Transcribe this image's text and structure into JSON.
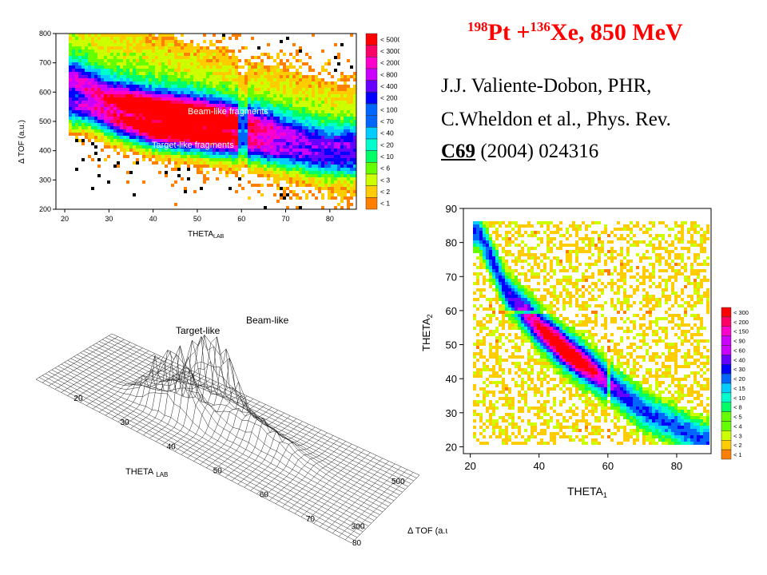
{
  "slide": {
    "title_mass1": "198",
    "title_elem1": "Pt +",
    "title_mass2": "136",
    "title_elem2": "Xe, 850 MeV",
    "citation_line1": "J.J. Valiente-Dobon, PHR,",
    "citation_line2": "C.Wheldon et al., Phys. Rev.",
    "citation_volume": "C69",
    "citation_rest": " (2004) 024316"
  },
  "colors": {
    "scale": [
      "#ff7f00",
      "#ffcc00",
      "#ccff00",
      "#66ff00",
      "#00ff66",
      "#00ffcc",
      "#00ccff",
      "#0066ff",
      "#0000ff",
      "#6600ff",
      "#cc00ff",
      "#ff00cc",
      "#ff0066",
      "#ff0000"
    ]
  },
  "chart_data": [
    {
      "type": "heatmap",
      "name": "top-left-tof-vs-theta",
      "xlabel": "THETA",
      "xlabel_sub": "LAB",
      "ylabel": "Δ TOF (a.u.)",
      "xlim": [
        18,
        86
      ],
      "ylim": [
        200,
        800
      ],
      "xticks": [
        "20",
        "30",
        "40",
        "50",
        "60",
        "70",
        "80"
      ],
      "yticks": [
        "200",
        "300",
        "400",
        "500",
        "600",
        "700",
        "800"
      ],
      "legend": [
        "< 5000",
        "< 3000",
        "< 2000",
        "< 800",
        "< 400",
        "< 200",
        "< 100",
        "< 70",
        "< 40",
        "< 20",
        "< 10",
        "< 6",
        "< 3",
        "< 2",
        "< 1"
      ],
      "annotations": [
        "Beam-like fragments",
        "Target-like fragments"
      ],
      "ridges": [
        {
          "label": "Beam-like fragments",
          "points": [
            [
              22,
              640
            ],
            [
              30,
              575
            ],
            [
              40,
              540
            ],
            [
              50,
              520
            ],
            [
              60,
              495
            ],
            [
              70,
              455
            ],
            [
              78,
              420
            ]
          ]
        },
        {
          "label": "Target-like fragments",
          "points": [
            [
              24,
              560
            ],
            [
              32,
              510
            ],
            [
              40,
              478
            ],
            [
              50,
              460
            ],
            [
              60,
              440
            ],
            [
              70,
              410
            ],
            [
              78,
              380
            ]
          ]
        }
      ]
    },
    {
      "type": "heatmap",
      "name": "surface-tof-vs-theta",
      "xlabel": "THETA",
      "xlabel_sub": "LAB",
      "ylabel": "Δ TOF (a.u.)",
      "xticks": [
        "20",
        "30",
        "40",
        "50",
        "60",
        "70",
        "80"
      ],
      "yticks": [
        "300",
        "500"
      ],
      "annotations": [
        "Target-like",
        "Beam-like"
      ]
    },
    {
      "type": "heatmap",
      "name": "theta2-vs-theta1",
      "xlabel": "THETA",
      "xlabel_sub": "1",
      "ylabel": "THETA",
      "ylabel_sub": "2",
      "xlim": [
        18,
        90
      ],
      "ylim": [
        18,
        90
      ],
      "xticks": [
        "20",
        "40",
        "60",
        "80"
      ],
      "yticks": [
        "20",
        "30",
        "40",
        "50",
        "60",
        "70",
        "80",
        "90"
      ],
      "legend": [
        "< 300",
        "< 200",
        "< 150",
        "< 90",
        "< 60",
        "< 40",
        "< 30",
        "< 20",
        "< 15",
        "< 10",
        "< 8",
        "< 5",
        "< 4",
        "< 3",
        "< 2",
        "< 1"
      ],
      "ridge": [
        [
          22,
          84
        ],
        [
          30,
          66
        ],
        [
          40,
          55
        ],
        [
          48,
          48
        ],
        [
          55,
          43
        ],
        [
          60,
          39
        ],
        [
          70,
          31
        ],
        [
          80,
          26
        ],
        [
          88,
          22
        ]
      ]
    }
  ]
}
